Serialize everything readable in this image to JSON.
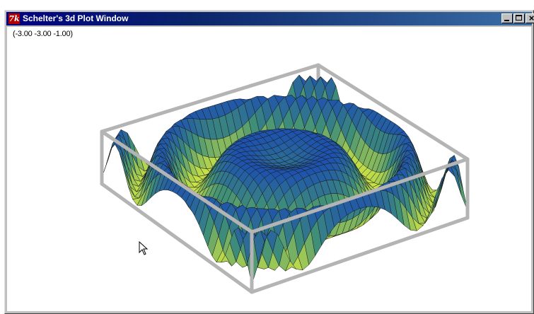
{
  "window": {
    "title": "Schelter's 3d Plot Window",
    "app_icon": "tk-feather-icon",
    "controls": {
      "minimize": "minimize-icon",
      "maximize": "maximize-icon",
      "close": "close-icon",
      "close_glyph": "×"
    }
  },
  "plot": {
    "coordinate_readout": "(-3.00 -3.00 -1.00)",
    "surface_colors": {
      "low": "#e8f53a",
      "mid": "#3f8f78",
      "high": "#1746b8"
    },
    "box_color": "#b4b4b4",
    "mesh_color": "#1a1a1a"
  },
  "cursor": {
    "icon": "arrow-cursor-icon"
  }
}
